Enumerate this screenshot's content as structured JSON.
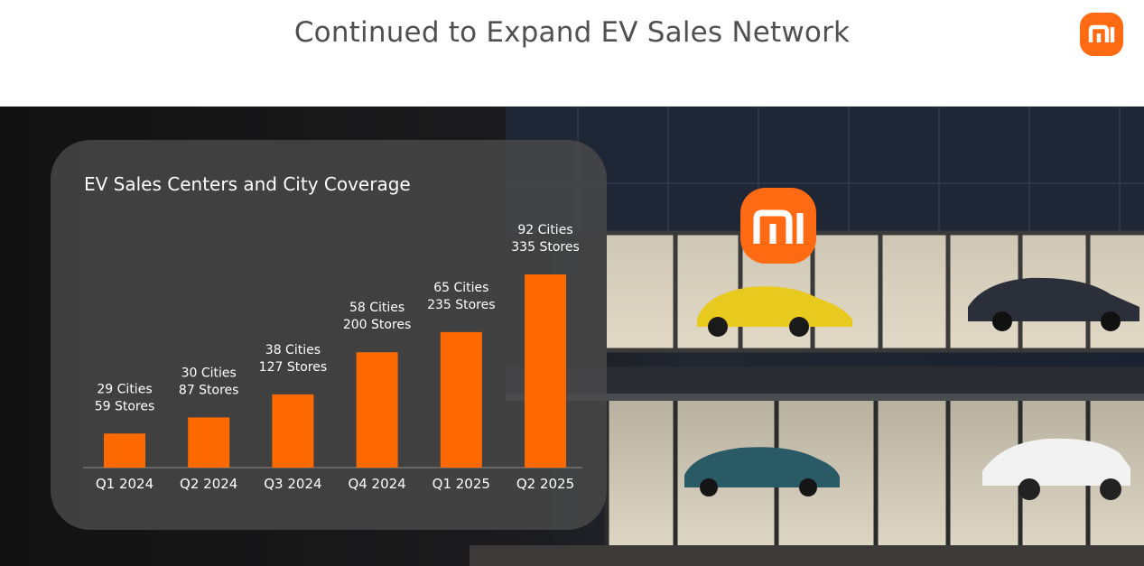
{
  "page": {
    "title": "Continued to Expand EV Sales Network"
  },
  "logo": {
    "icon": "mi-logo-icon",
    "color": "#ff6a13"
  },
  "chart_data": {
    "type": "bar",
    "title": "EV Sales Centers and City Coverage",
    "categories": [
      "Q1 2024",
      "Q2 2024",
      "Q3 2024",
      "Q4 2024",
      "Q1 2025",
      "Q2 2025"
    ],
    "series": [
      {
        "values": [
          59,
          87,
          127,
          200,
          235,
          335
        ]
      }
    ],
    "cities": [
      29,
      30,
      38,
      58,
      65,
      92
    ],
    "data_labels": [
      [
        "29 Cities",
        "59 Stores"
      ],
      [
        "30 Cities",
        "87 Stores"
      ],
      [
        "38 Cities",
        "127 Stores"
      ],
      [
        "58 Cities",
        "200 Stores"
      ],
      [
        "65 Cities",
        "235 Stores"
      ],
      [
        "92 Cities",
        "335 Stores"
      ]
    ],
    "bar_color": "#ff6a00",
    "ylim": [
      0,
      335
    ],
    "grid": false,
    "legend": "none"
  }
}
